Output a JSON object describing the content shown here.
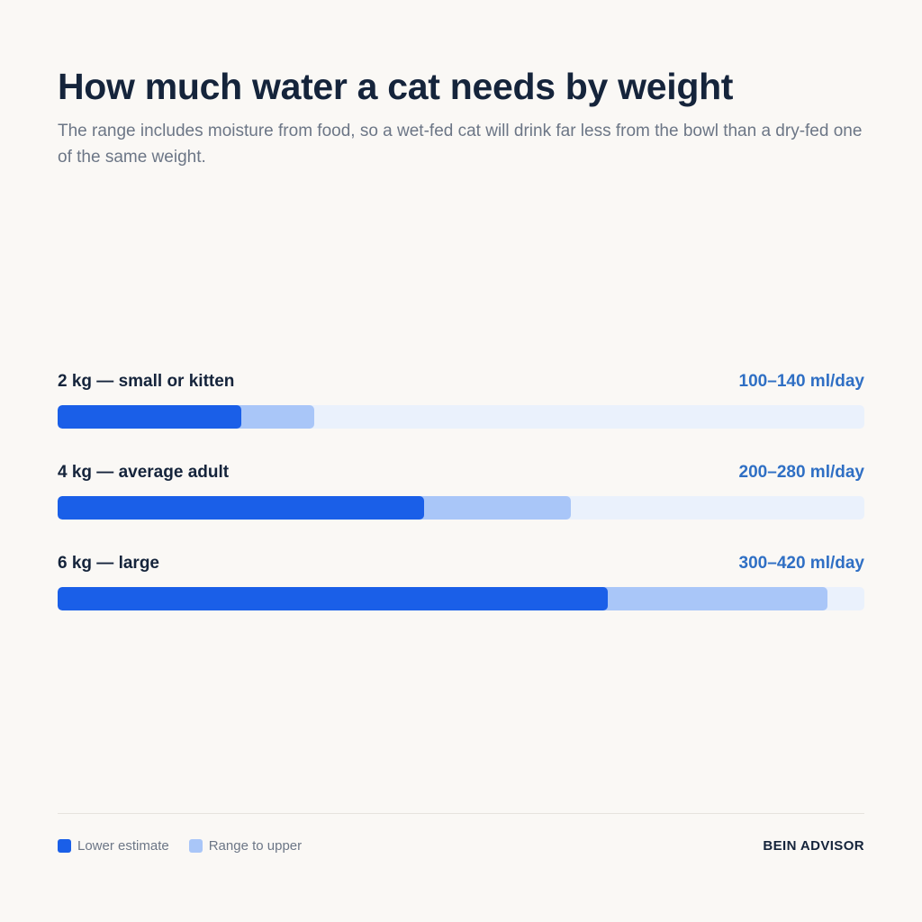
{
  "header": {
    "title": "How much water a cat needs by weight",
    "subtitle": "The range includes moisture from food, so a wet-fed cat will drink far less from the bowl than a dry-fed one of the same weight."
  },
  "chart_data": {
    "type": "bar",
    "orientation": "horizontal",
    "stacked_range": true,
    "categories": [
      "2 kg — small or kitten",
      "4 kg — average adult",
      "6 kg — large"
    ],
    "value_labels": [
      "100–140 ml/day",
      "200–280 ml/day",
      "300–420 ml/day"
    ],
    "series": [
      {
        "name": "Lower estimate",
        "values": [
          100,
          200,
          300
        ]
      },
      {
        "name": "Range to upper",
        "values": [
          140,
          280,
          420
        ]
      }
    ],
    "xlim": [
      0,
      440
    ],
    "colors": {
      "lower": "#1a5fe8",
      "upper": "#a9c6f8",
      "track": "#eaf1fc"
    }
  },
  "legend": {
    "lower_label": "Lower estimate",
    "upper_label": "Range to upper"
  },
  "footer": {
    "brand": "BEIN ADVISOR"
  }
}
